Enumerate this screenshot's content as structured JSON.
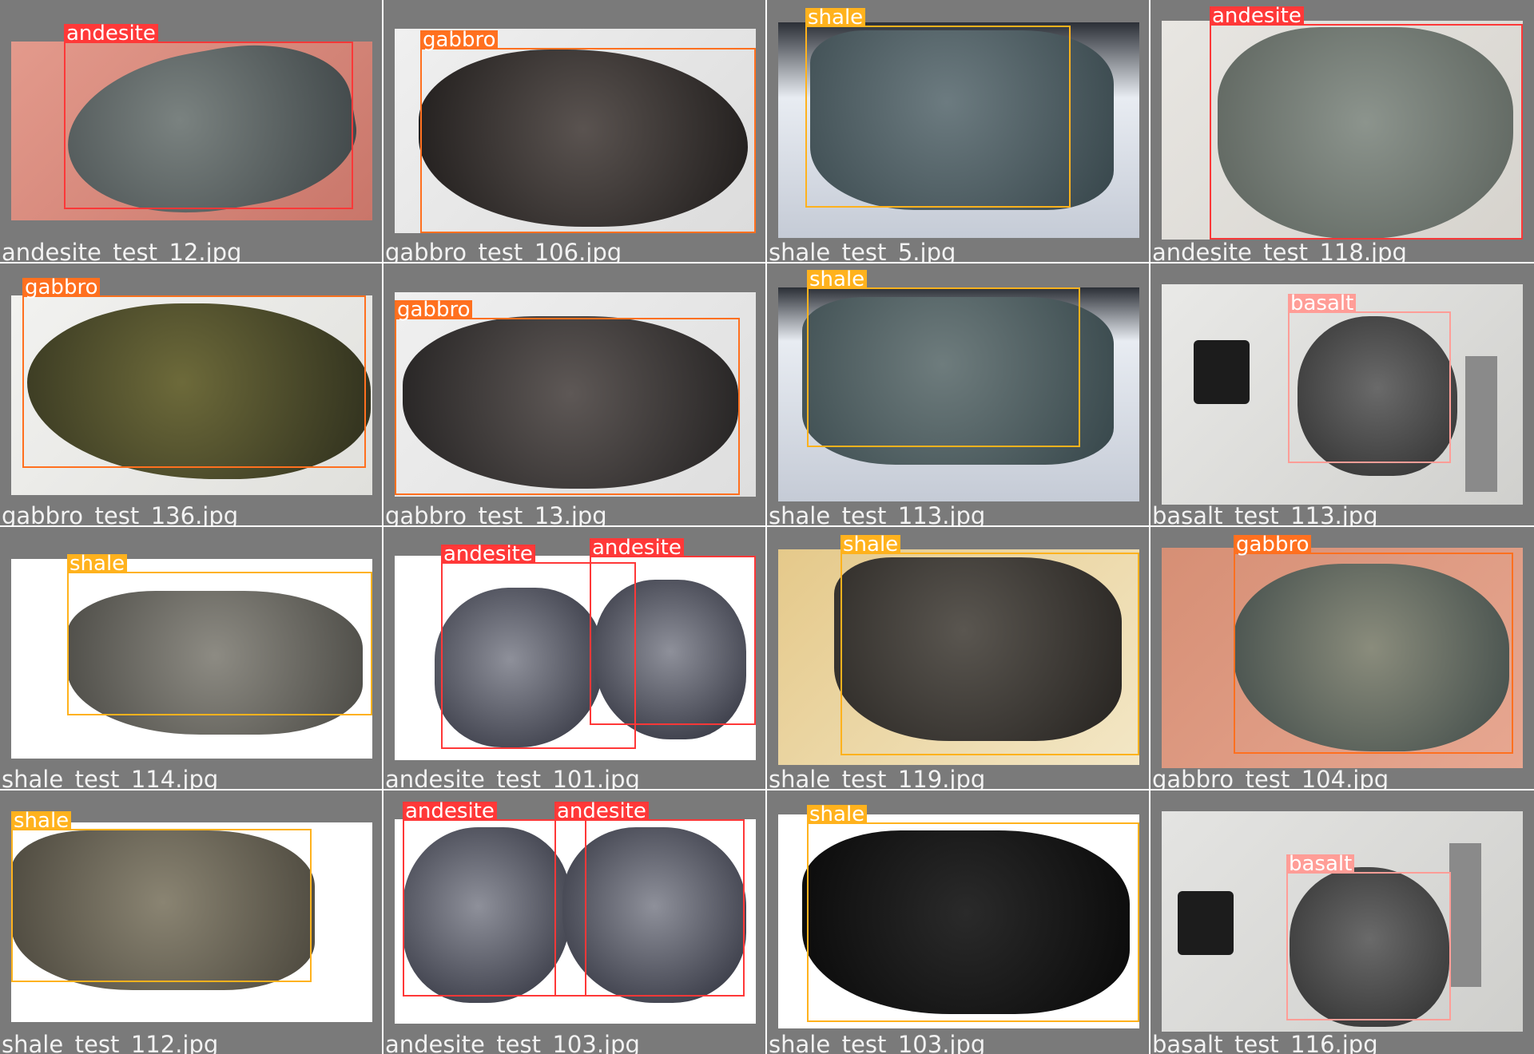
{
  "class_colors": {
    "andesite": "#ff3838",
    "gabbro": "#ff701f",
    "shale": "#ffb21d",
    "basalt": "#ff9d97"
  },
  "tiles": [
    {
      "filename": "andesite_test_12.jpg",
      "detections": [
        {
          "label": "andesite"
        }
      ]
    },
    {
      "filename": "gabbro_test_106.jpg",
      "detections": [
        {
          "label": "gabbro"
        }
      ]
    },
    {
      "filename": "shale_test_5.jpg",
      "detections": [
        {
          "label": "shale"
        }
      ]
    },
    {
      "filename": "andesite_test_118.jpg",
      "detections": [
        {
          "label": "andesite"
        }
      ]
    },
    {
      "filename": "gabbro_test_136.jpg",
      "detections": [
        {
          "label": "gabbro"
        }
      ]
    },
    {
      "filename": "gabbro_test_13.jpg",
      "detections": [
        {
          "label": "gabbro"
        }
      ]
    },
    {
      "filename": "shale_test_113.jpg",
      "detections": [
        {
          "label": "shale"
        }
      ]
    },
    {
      "filename": "basalt_test_113.jpg",
      "detections": [
        {
          "label": "basalt"
        }
      ]
    },
    {
      "filename": "shale_test_114.jpg",
      "detections": [
        {
          "label": "shale"
        }
      ]
    },
    {
      "filename": "andesite_test_101.jpg",
      "detections": [
        {
          "label": "andesite"
        },
        {
          "label": "andesite"
        }
      ]
    },
    {
      "filename": "shale_test_119.jpg",
      "detections": [
        {
          "label": "shale"
        }
      ]
    },
    {
      "filename": "gabbro_test_104.jpg",
      "detections": [
        {
          "label": "gabbro"
        }
      ]
    },
    {
      "filename": "shale_test_112.jpg",
      "detections": [
        {
          "label": "shale"
        }
      ]
    },
    {
      "filename": "andesite_test_103.jpg",
      "detections": [
        {
          "label": "andesite"
        },
        {
          "label": "andesite"
        }
      ]
    },
    {
      "filename": "shale_test_103.jpg",
      "detections": [
        {
          "label": "shale"
        }
      ]
    },
    {
      "filename": "basalt_test_116.jpg",
      "detections": [
        {
          "label": "basalt"
        }
      ]
    }
  ]
}
